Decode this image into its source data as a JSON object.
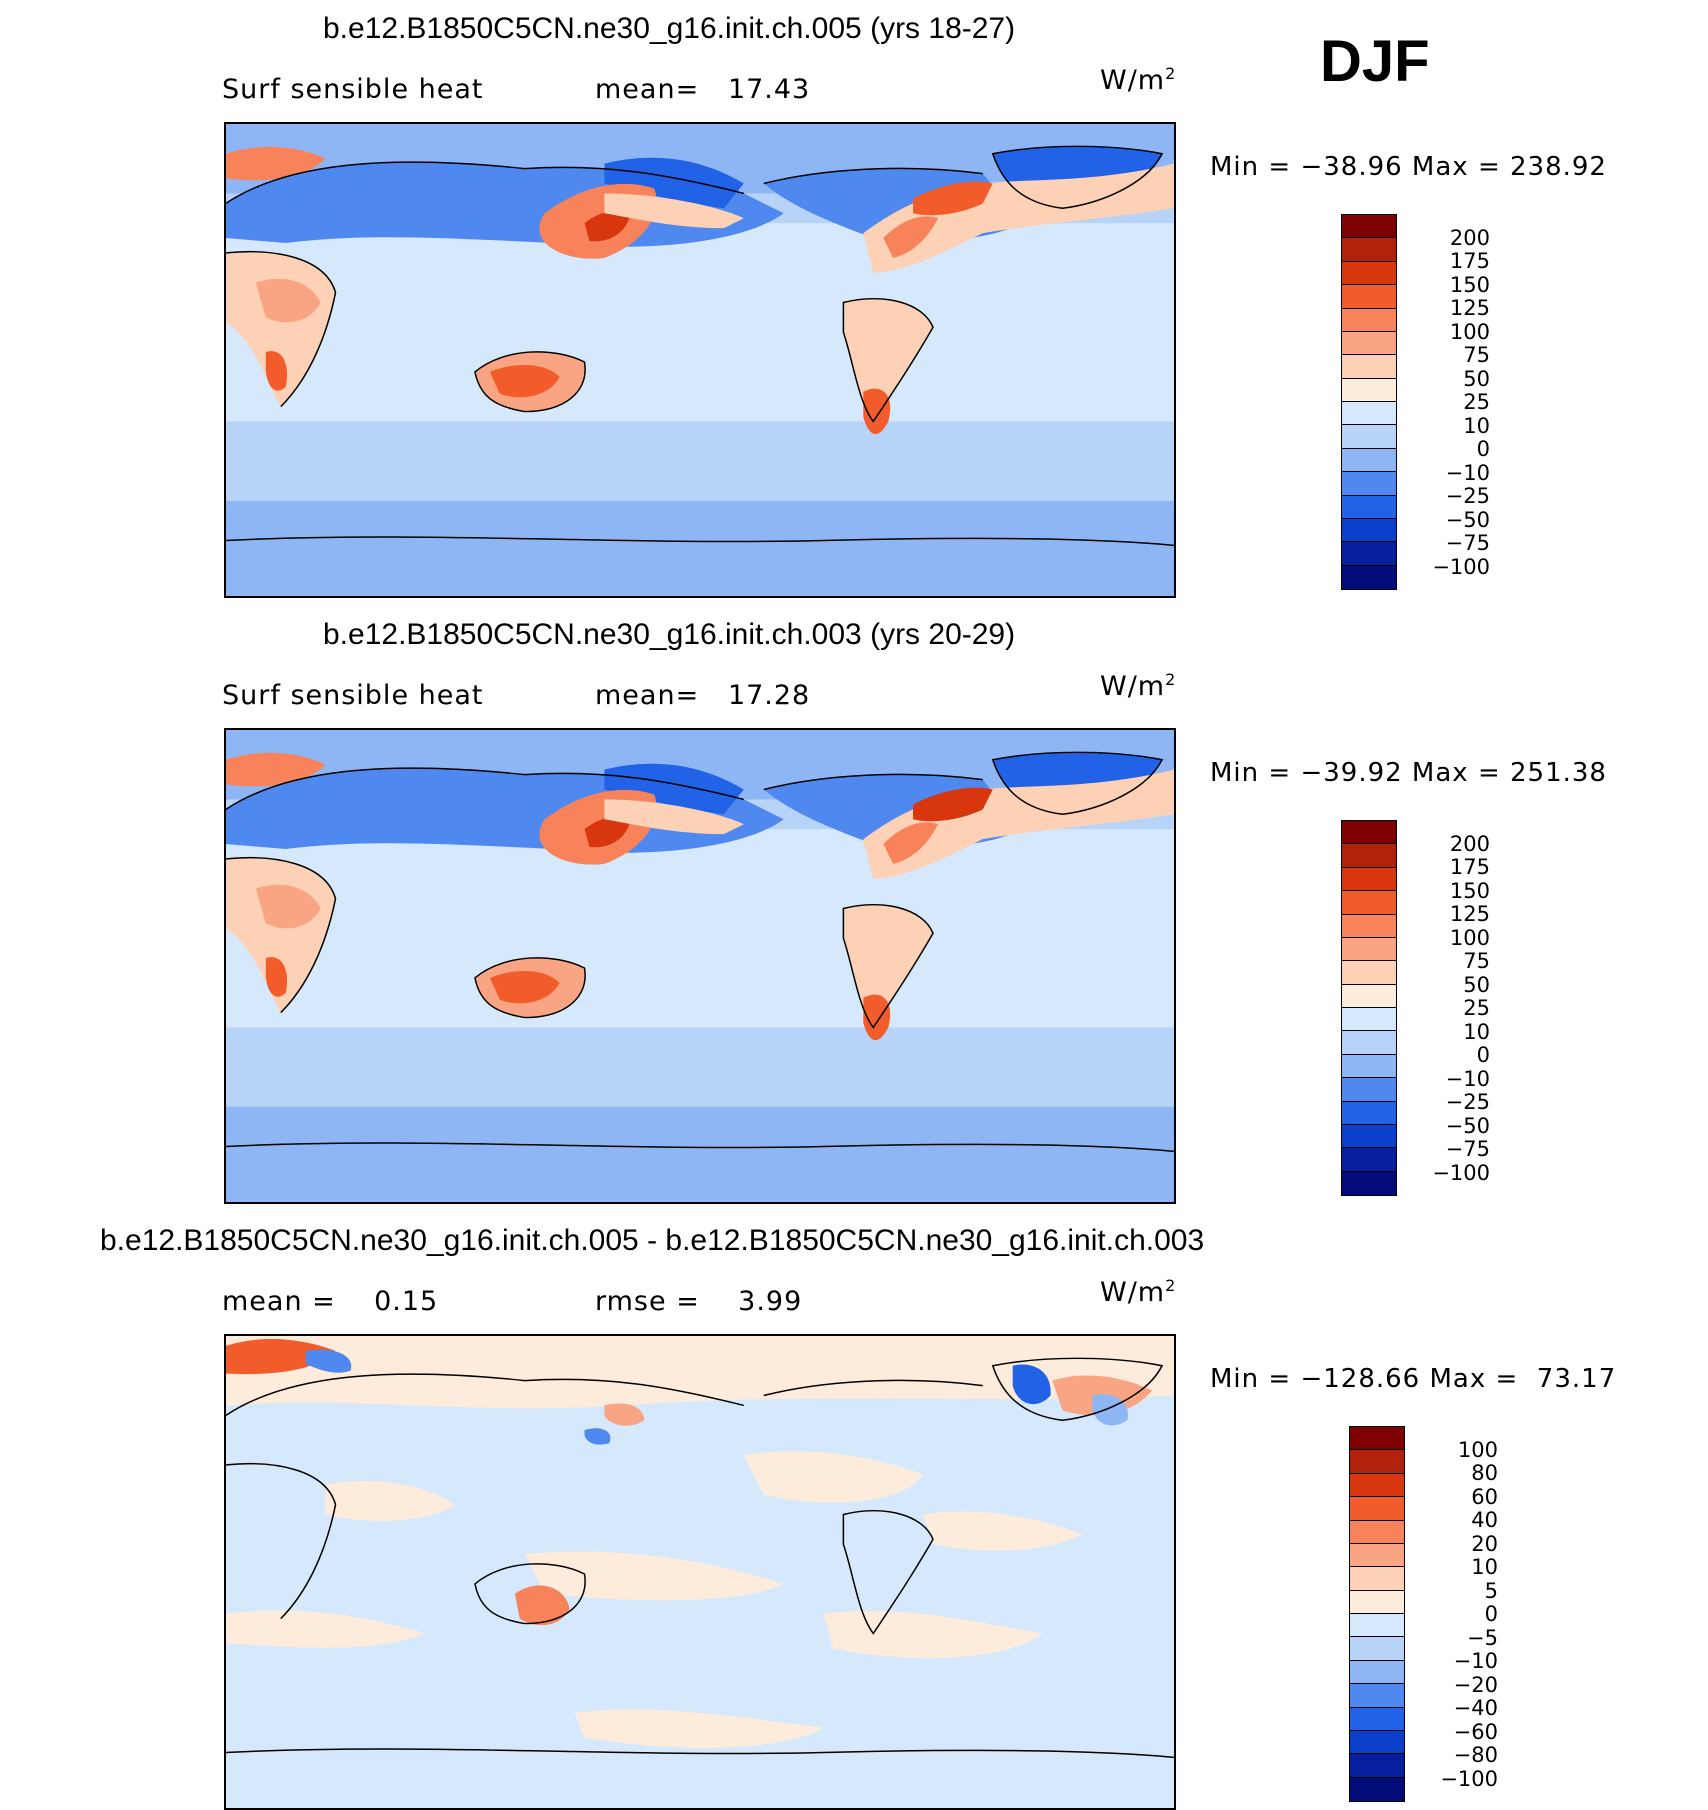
{
  "season": "DJF",
  "panels": [
    {
      "title": "b.e12.B1850C5CN.ne30_g16.init.ch.005 (yrs 18-27)",
      "left_label": "Surf sensible heat",
      "right_label": "mean=   17.43",
      "units": "W/m",
      "units_sup": "2",
      "minmax": "Min = −38.96 Max = 238.92",
      "colorbar": {
        "labels": [
          "200",
          "175",
          "150",
          "125",
          "100",
          "75",
          "50",
          "25",
          "10",
          "0",
          "−10",
          "−25",
          "−50",
          "−75",
          "−100"
        ],
        "colors": [
          "#7f0000",
          "#b0220c",
          "#d8360f",
          "#f25b2a",
          "#f8835a",
          "#f9a583",
          "#fcd1b5",
          "#fdebdc",
          "#d6e8fb",
          "#b7d3f7",
          "#8fb6f4",
          "#4f88ee",
          "#2162e6",
          "#0a40cc",
          "#071e9e",
          "#020c78"
        ]
      }
    },
    {
      "title": "b.e12.B1850C5CN.ne30_g16.init.ch.003 (yrs 20-29)",
      "left_label": "Surf sensible heat",
      "right_label": "mean=   17.28",
      "units": "W/m",
      "units_sup": "2",
      "minmax": "Min = −39.92 Max = 251.38",
      "colorbar": {
        "labels": [
          "200",
          "175",
          "150",
          "125",
          "100",
          "75",
          "50",
          "25",
          "10",
          "0",
          "−10",
          "−25",
          "−50",
          "−75",
          "−100"
        ],
        "colors": [
          "#7f0000",
          "#b0220c",
          "#d8360f",
          "#f25b2a",
          "#f8835a",
          "#f9a583",
          "#fcd1b5",
          "#fdebdc",
          "#d6e8fb",
          "#b7d3f7",
          "#8fb6f4",
          "#4f88ee",
          "#2162e6",
          "#0a40cc",
          "#071e9e",
          "#020c78"
        ]
      }
    },
    {
      "title": "b.e12.B1850C5CN.ne30_g16.init.ch.005 - b.e12.B1850C5CN.ne30_g16.init.ch.003",
      "left_label": "mean =    0.15",
      "right_label": "rmse =    3.99",
      "units": "W/m",
      "units_sup": "2",
      "minmax": "Min = −128.66 Max =  73.17",
      "colorbar": {
        "labels": [
          "100",
          "80",
          "60",
          "40",
          "20",
          "10",
          "5",
          "0",
          "−5",
          "−10",
          "−20",
          "−40",
          "−60",
          "−80",
          "−100"
        ],
        "colors": [
          "#7f0000",
          "#b0220c",
          "#d8360f",
          "#f25b2a",
          "#f8835a",
          "#f9a583",
          "#fcd1b5",
          "#fdebdc",
          "#d6e8fb",
          "#b7d3f7",
          "#8fb6f4",
          "#4f88ee",
          "#2162e6",
          "#0a40cc",
          "#071e9e",
          "#020c78"
        ]
      }
    }
  ]
}
